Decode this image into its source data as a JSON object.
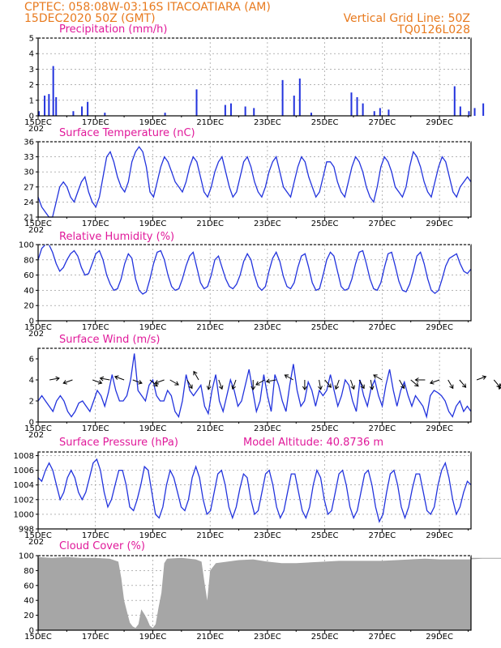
{
  "header": {
    "line1": "CPTEC:   058:08W-03:16S   ITACOATIARA (AM)",
    "line2": "15DEC2020 50Z (GMT)",
    "grid_note": "Vertical Grid Line: 50Z",
    "model": "TQ0126L028"
  },
  "colors": {
    "header": "#e87a1e",
    "title": "#e0199a",
    "series": "#2233dd",
    "cloud": "#a6a6a6",
    "grid": "#888888"
  },
  "x_labels": [
    "15DEC",
    "17DEC",
    "19DEC",
    "21DEC",
    "23DEC",
    "25DEC",
    "27DEC",
    "29DEC"
  ],
  "x_sub_label": "202",
  "chart_data": [
    {
      "type": "bar",
      "title": "Precipitation (mm/h)",
      "ylim": [
        0,
        5
      ],
      "yticks": [
        "0",
        "1",
        "2",
        "3",
        "4",
        "5"
      ],
      "grid": true,
      "series": [
        {
          "values_by_day": [
            [
              0.0,
              0.3
            ],
            [
              0.2,
              1.3
            ],
            [
              0.35,
              1.4
            ],
            [
              0.5,
              3.2
            ],
            [
              0.6,
              1.2
            ],
            [
              1.2,
              0.3
            ],
            [
              1.5,
              0.6
            ],
            [
              1.7,
              0.9
            ],
            [
              2.3,
              0.2
            ],
            [
              4.4,
              0.2
            ],
            [
              5.5,
              1.7
            ],
            [
              6.5,
              0.7
            ],
            [
              6.7,
              0.8
            ],
            [
              7.2,
              0.6
            ],
            [
              7.5,
              0.5
            ],
            [
              8.5,
              2.3
            ],
            [
              8.9,
              1.3
            ],
            [
              9.1,
              2.4
            ],
            [
              9.5,
              0.2
            ],
            [
              10.9,
              1.5
            ],
            [
              11.1,
              1.2
            ],
            [
              11.3,
              0.8
            ],
            [
              11.7,
              0.3
            ],
            [
              11.9,
              0.5
            ],
            [
              12.2,
              0.4
            ],
            [
              14.5,
              1.9
            ],
            [
              14.7,
              0.6
            ],
            [
              15.0,
              0.3
            ],
            [
              15.2,
              0.5
            ],
            [
              15.5,
              0.8
            ],
            [
              16.8,
              0.4
            ],
            [
              17.2,
              0.5
            ],
            [
              18.5,
              0.2
            ],
            [
              19.5,
              0.2
            ],
            [
              20.6,
              0.4
            ],
            [
              20.8,
              1.2
            ],
            [
              20.9,
              1.8
            ]
          ]
        }
      ]
    },
    {
      "type": "line",
      "title": "Surface Temperature (nC)",
      "ylim": [
        21,
        36
      ],
      "yticks": [
        "21",
        "24",
        "27",
        "30",
        "33",
        "36"
      ],
      "grid": true,
      "series": [
        {
          "values": [
            25,
            23,
            22,
            21,
            21,
            24,
            27,
            28,
            27,
            25,
            24,
            26,
            28,
            29,
            26,
            24,
            23,
            25,
            29,
            33,
            34,
            32,
            29,
            27,
            26,
            28,
            32,
            34,
            35,
            34,
            31,
            26,
            25,
            28,
            31,
            33,
            32,
            30,
            28,
            27,
            26,
            28,
            31,
            33,
            32,
            29,
            26,
            25,
            27,
            30,
            32,
            33,
            30,
            27,
            25,
            26,
            29,
            32,
            33,
            31,
            28,
            26,
            25,
            27,
            30,
            32,
            33,
            30,
            27,
            26,
            25,
            28,
            31,
            33,
            32,
            29,
            27,
            25,
            26,
            29,
            32,
            32,
            31,
            28,
            26,
            25,
            28,
            31,
            33,
            32,
            30,
            27,
            25,
            24,
            27,
            31,
            33,
            32,
            30,
            27,
            26,
            25,
            27,
            31,
            34,
            33,
            31,
            28,
            26,
            25,
            28,
            31,
            33,
            32,
            29,
            26,
            25,
            27,
            28,
            29,
            28
          ]
        }
      ]
    },
    {
      "type": "line",
      "title": "Relative Humidity (%)",
      "ylim": [
        0,
        100
      ],
      "yticks": [
        "0",
        "20",
        "40",
        "60",
        "80",
        "100"
      ],
      "grid": true,
      "series": [
        {
          "values": [
            80,
            95,
            100,
            100,
            90,
            75,
            65,
            70,
            80,
            88,
            92,
            85,
            70,
            60,
            62,
            75,
            88,
            92,
            80,
            60,
            48,
            40,
            42,
            55,
            75,
            88,
            82,
            55,
            40,
            35,
            38,
            55,
            75,
            90,
            92,
            80,
            60,
            45,
            40,
            42,
            55,
            72,
            85,
            90,
            70,
            50,
            42,
            45,
            60,
            80,
            85,
            70,
            55,
            45,
            42,
            48,
            60,
            78,
            88,
            80,
            60,
            45,
            40,
            45,
            65,
            82,
            90,
            78,
            58,
            45,
            42,
            50,
            70,
            85,
            88,
            70,
            50,
            40,
            42,
            60,
            80,
            90,
            85,
            65,
            45,
            40,
            42,
            55,
            75,
            90,
            92,
            75,
            55,
            42,
            40,
            50,
            70,
            88,
            90,
            72,
            52,
            40,
            38,
            48,
            65,
            85,
            90,
            75,
            55,
            40,
            36,
            40,
            55,
            72,
            82,
            85,
            88,
            75,
            65,
            62,
            68
          ]
        }
      ]
    },
    {
      "type": "line",
      "title": "Surface Wind (m/s)",
      "ylim": [
        0,
        7
      ],
      "yticks": [
        "0",
        "2",
        "4",
        "6"
      ],
      "grid": false,
      "series": [
        {
          "values": [
            2,
            2.5,
            2,
            1.5,
            1,
            2,
            2.5,
            2,
            1,
            0.5,
            1,
            1.8,
            2,
            1.5,
            1,
            2,
            3,
            2.5,
            1.5,
            2.8,
            4.5,
            3,
            2,
            2,
            2.5,
            4,
            6.5,
            3,
            2.5,
            2,
            3.5,
            4,
            2.5,
            2,
            2,
            3,
            2.5,
            1,
            0.5,
            2,
            4.5,
            3,
            2.5,
            3,
            3.5,
            1.5,
            0.8,
            3,
            4.5,
            2,
            1,
            2.5,
            4,
            3,
            1.5,
            2,
            3.5,
            5,
            3,
            1,
            2,
            4.5,
            2.5,
            1,
            4.5,
            3.5,
            2,
            1,
            3.5,
            5.5,
            3,
            1.5,
            2,
            3.8,
            3,
            1.5,
            3,
            2.5,
            3,
            4.5,
            3,
            1.5,
            2.5,
            4,
            3.5,
            2,
            1,
            4,
            2.5,
            1.5,
            3.2,
            4,
            2.5,
            1.5,
            3.5,
            5,
            3,
            1.5,
            3,
            3.8,
            2.5,
            1.5,
            2.5,
            2,
            1.5,
            0.5,
            2.5,
            3,
            2.8,
            2.5,
            2,
            1,
            0.5,
            1.5,
            2,
            1,
            1.5,
            1
          ]
        }
      ],
      "arrows_by_day": [
        [
          0.4,
          10
        ],
        [
          1.2,
          200
        ],
        [
          1.9,
          -20
        ],
        [
          2.5,
          170
        ],
        [
          3.0,
          160
        ],
        [
          3.3,
          -20
        ],
        [
          3.9,
          -40
        ],
        [
          4.4,
          200
        ],
        [
          4.6,
          -30
        ],
        [
          5.2,
          -60
        ],
        [
          5.6,
          120
        ],
        [
          6.0,
          -100
        ],
        [
          6.3,
          -70
        ],
        [
          6.9,
          -110
        ],
        [
          7.5,
          -90
        ],
        [
          7.9,
          -150
        ],
        [
          8.3,
          190
        ],
        [
          8.9,
          150
        ],
        [
          9.3,
          -90
        ],
        [
          9.8,
          -80
        ],
        [
          10.0,
          -50
        ],
        [
          10.5,
          -110
        ],
        [
          10.9,
          -70
        ],
        [
          11.2,
          -60
        ],
        [
          11.6,
          -80
        ],
        [
          12.0,
          150
        ],
        [
          12.6,
          -60
        ],
        [
          13.0,
          -40
        ],
        [
          13.5,
          180
        ],
        [
          14.0,
          200
        ],
        [
          14.3,
          -60
        ],
        [
          14.7,
          -50
        ],
        [
          15.3,
          20
        ],
        [
          15.9,
          -50
        ],
        [
          16.2,
          -110
        ],
        [
          16.8,
          -40
        ]
      ]
    },
    {
      "type": "line",
      "title": "Surface Pressure (hPa)",
      "annotation": "Model Altitude: 40.8736 m",
      "ylim": [
        998,
        1008.5
      ],
      "yticks": [
        "998",
        "1000",
        "1002",
        "1004",
        "1006",
        "1008"
      ],
      "grid": true,
      "series": [
        {
          "values": [
            1005,
            1004.5,
            1006,
            1007,
            1006,
            1004,
            1002,
            1003,
            1005,
            1006,
            1005,
            1003,
            1002,
            1003,
            1005,
            1007,
            1007.5,
            1006,
            1003,
            1001,
            1002,
            1004,
            1006,
            1006,
            1004,
            1001,
            1000.5,
            1002,
            1004,
            1006.5,
            1006,
            1003,
            1000,
            999.5,
            1001,
            1004,
            1006,
            1005,
            1003,
            1001,
            1000.5,
            1002,
            1005,
            1006.5,
            1005,
            1002,
            1000,
            1000.5,
            1003,
            1005.5,
            1006,
            1004,
            1001,
            999.5,
            1001,
            1003.5,
            1005.5,
            1005,
            1002,
            1000,
            1000.5,
            1003,
            1005.5,
            1006,
            1004,
            1001,
            999.5,
            1000.5,
            1003,
            1005.5,
            1005.5,
            1003,
            1000.5,
            999.5,
            1001,
            1004,
            1006,
            1005,
            1002,
            1000,
            1000.5,
            1003,
            1005.5,
            1006,
            1004,
            1001,
            999.5,
            1000.5,
            1003,
            1005.5,
            1006,
            1004,
            1001,
            999,
            1000,
            1003,
            1005.5,
            1006,
            1004,
            1001,
            999.5,
            1001,
            1003.5,
            1005.5,
            1005.5,
            1003,
            1000.5,
            1000,
            1001,
            1004,
            1006,
            1007,
            1005,
            1002,
            1000,
            1001,
            1003,
            1004.5,
            1004
          ]
        }
      ]
    },
    {
      "type": "bar",
      "title": "Cloud Cover (%)",
      "ylim": [
        0,
        100
      ],
      "yticks": [
        "0",
        "20",
        "40",
        "60",
        "80",
        "100"
      ],
      "grid": true,
      "series": [
        {
          "values_by_day": [
            [
              0.0,
              98
            ],
            [
              0.5,
              97
            ],
            [
              1.0,
              98
            ],
            [
              1.5,
              97
            ],
            [
              2.0,
              97
            ],
            [
              2.5,
              96
            ],
            [
              2.8,
              92
            ],
            [
              2.9,
              70
            ],
            [
              3.0,
              40
            ],
            [
              3.1,
              25
            ],
            [
              3.2,
              10
            ],
            [
              3.3,
              5
            ],
            [
              3.4,
              3
            ],
            [
              3.5,
              8
            ],
            [
              3.6,
              28
            ],
            [
              3.7,
              22
            ],
            [
              3.8,
              15
            ],
            [
              3.9,
              6
            ],
            [
              4.0,
              3
            ],
            [
              4.1,
              8
            ],
            [
              4.2,
              30
            ],
            [
              4.3,
              50
            ],
            [
              4.4,
              90
            ],
            [
              4.5,
              96
            ],
            [
              5.0,
              97
            ],
            [
              5.5,
              95
            ],
            [
              5.7,
              92
            ],
            [
              5.8,
              65
            ],
            [
              5.9,
              40
            ],
            [
              6.0,
              80
            ],
            [
              6.2,
              90
            ],
            [
              6.6,
              92
            ],
            [
              7.0,
              94
            ],
            [
              7.5,
              95
            ],
            [
              8.0,
              92
            ],
            [
              8.5,
              90
            ],
            [
              9.0,
              90
            ],
            [
              9.5,
              91
            ],
            [
              10.0,
              92
            ],
            [
              10.5,
              93
            ],
            [
              11.0,
              93
            ],
            [
              11.5,
              93
            ],
            [
              12.0,
              93
            ],
            [
              12.5,
              94
            ],
            [
              13.0,
              95
            ],
            [
              13.5,
              96
            ],
            [
              14.0,
              95
            ],
            [
              14.5,
              95
            ],
            [
              15.0,
              95
            ],
            [
              15.5,
              96
            ],
            [
              16.0,
              96
            ],
            [
              16.5,
              96
            ],
            [
              17.0,
              97
            ]
          ]
        }
      ]
    }
  ]
}
